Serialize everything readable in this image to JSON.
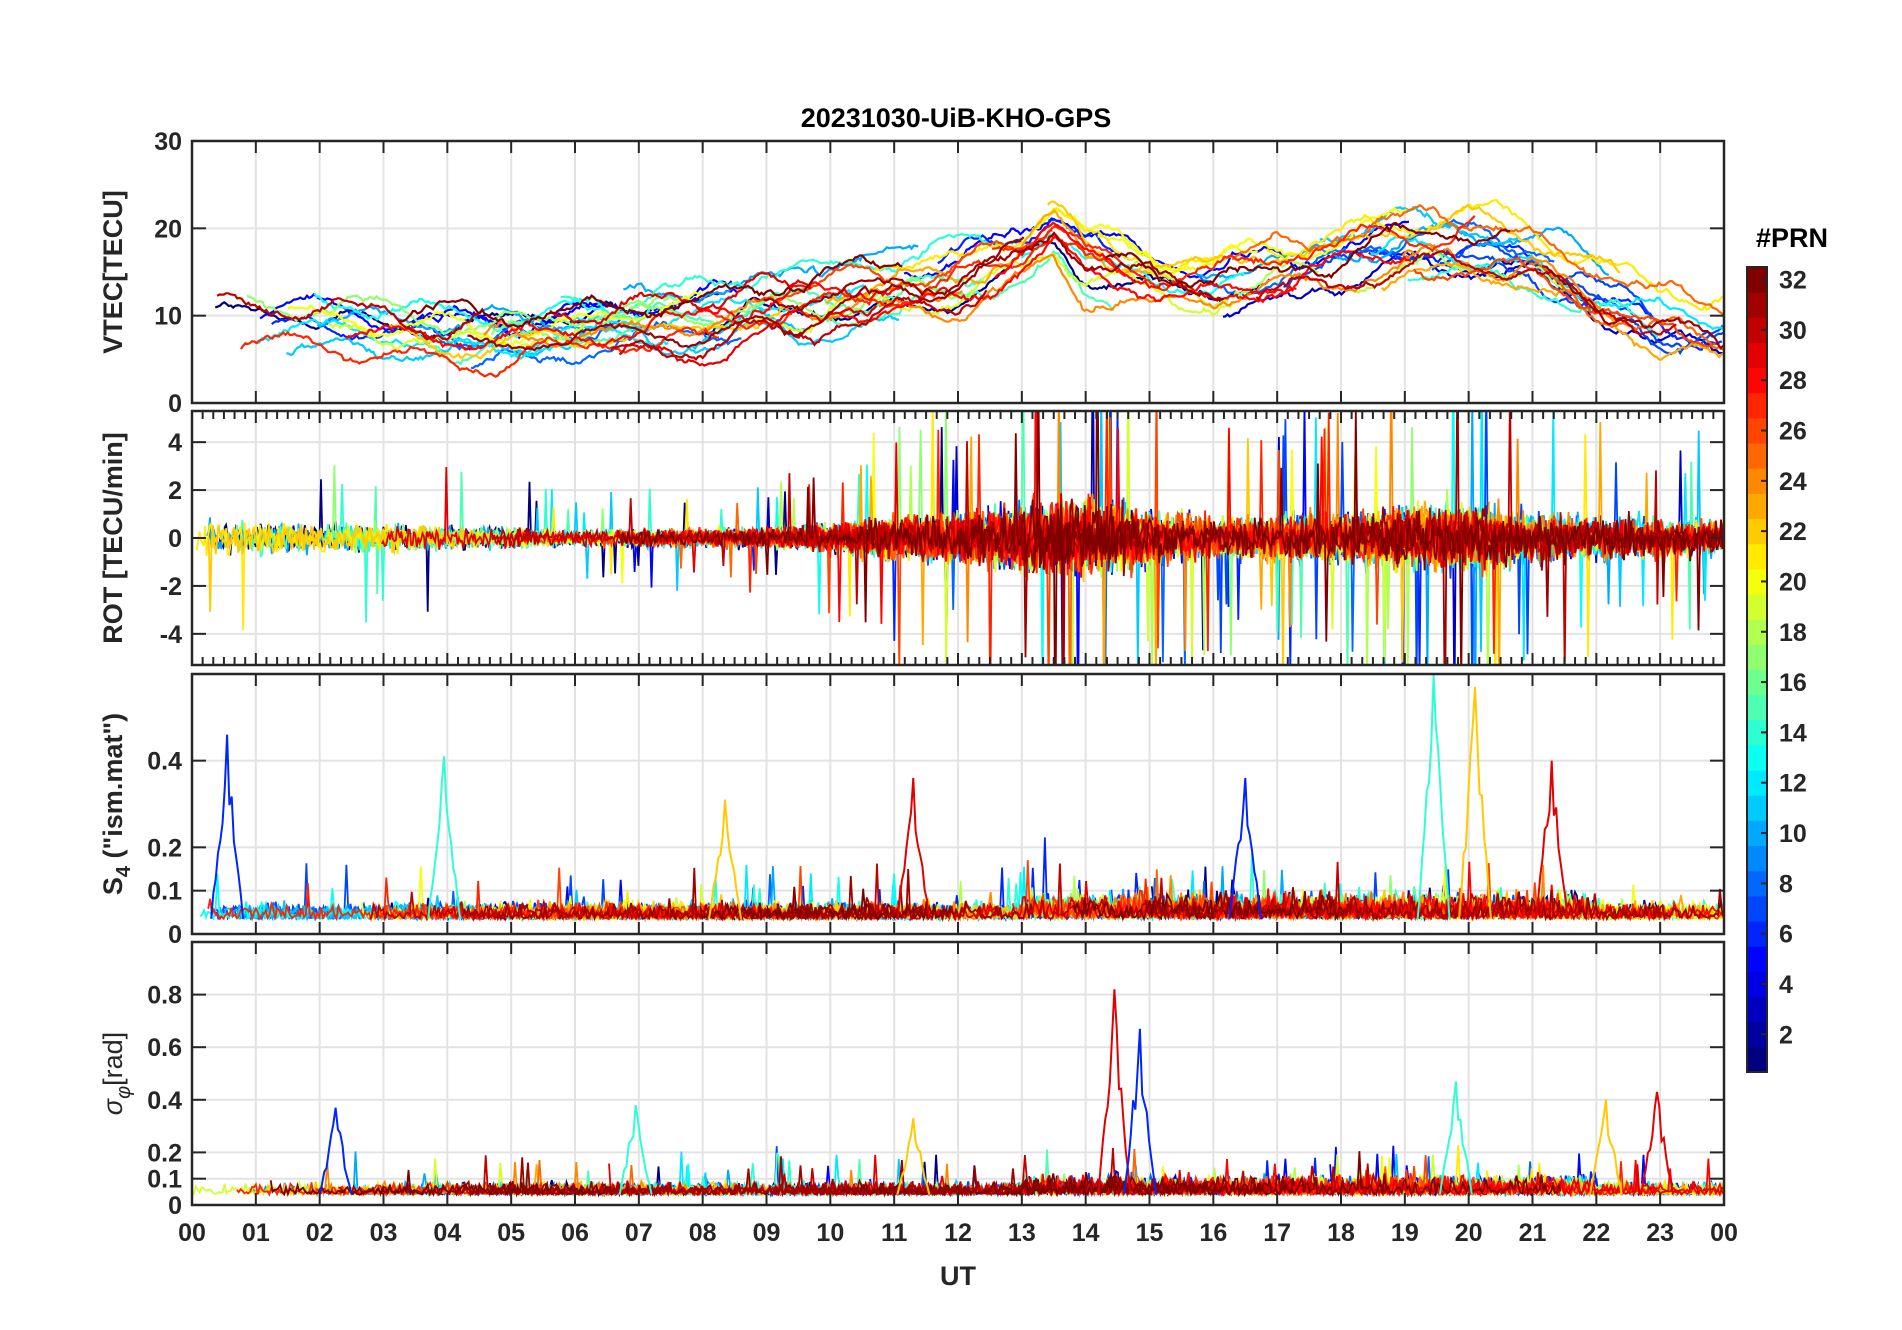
{
  "title": "20231030-UiB-KHO-GPS",
  "chart_data": {
    "type": "line",
    "title": "20231030-UiB-KHO-GPS",
    "xlabel": "UT",
    "x_ticks": [
      "00",
      "01",
      "02",
      "03",
      "04",
      "05",
      "06",
      "07",
      "08",
      "09",
      "10",
      "11",
      "12",
      "13",
      "14",
      "15",
      "16",
      "17",
      "18",
      "19",
      "20",
      "21",
      "22",
      "23",
      "00"
    ],
    "xlim": [
      0,
      24
    ],
    "panels": [
      {
        "id": "vtec",
        "ylabel": "VTEC[TECU]",
        "ylim": [
          0,
          30
        ],
        "y_ticks": [
          "0",
          "10",
          "20",
          "30"
        ],
        "y_tick_values": [
          0,
          10,
          20,
          30
        ],
        "grid": true,
        "envelope_hour": [
          0,
          2,
          4,
          6,
          8,
          10,
          11,
          12,
          13,
          13.5,
          14,
          15,
          16,
          17,
          18,
          19,
          20,
          21,
          22,
          23,
          24
        ],
        "envelope_mean": [
          9,
          8.5,
          7.5,
          8,
          10,
          12,
          13,
          14,
          17,
          20,
          16,
          14,
          13,
          15,
          16,
          18,
          18,
          17,
          13,
          10,
          9
        ]
      },
      {
        "id": "rot",
        "ylabel": "ROT [TECU/min]",
        "ylim": [
          -5.3,
          5.3
        ],
        "y_ticks": [
          "-4",
          "-2",
          "0",
          "2",
          "4"
        ],
        "y_tick_values": [
          -4,
          -2,
          0,
          2,
          4
        ],
        "grid": true,
        "envelope_hour": [
          0,
          3,
          6,
          9,
          10,
          11,
          12,
          13,
          14,
          15,
          16,
          17,
          18,
          19,
          20,
          21,
          22,
          23,
          24
        ],
        "envelope_amplitude": [
          1.2,
          0.9,
          0.5,
          0.6,
          0.9,
          1.4,
          1.5,
          2.2,
          2.4,
          1.8,
          1.2,
          1.4,
          1.5,
          2.0,
          2.2,
          1.6,
          1.4,
          1.2,
          1.1
        ]
      },
      {
        "id": "s4",
        "ylabel": "S4 (\"ism.mat\")",
        "ylabel_main": "S",
        "ylabel_sub": "4",
        "ylabel_rest": " (\"ism.mat\")",
        "ylim": [
          0,
          0.6
        ],
        "y_ticks": [
          "0",
          "0.1",
          "0.2",
          "0.4"
        ],
        "y_tick_values": [
          0,
          0.1,
          0.2,
          0.4
        ],
        "grid": true,
        "peaks": [
          {
            "hour": 0.55,
            "value": 0.46
          },
          {
            "hour": 3.95,
            "value": 0.41
          },
          {
            "hour": 8.35,
            "value": 0.31
          },
          {
            "hour": 11.3,
            "value": 0.36
          },
          {
            "hour": 16.5,
            "value": 0.36
          },
          {
            "hour": 19.45,
            "value": 0.6
          },
          {
            "hour": 20.1,
            "value": 0.57
          },
          {
            "hour": 21.3,
            "value": 0.4
          }
        ]
      },
      {
        "id": "sigma",
        "ylabel": "σφ[rad]",
        "ylabel_main": "σ",
        "ylabel_sub": "φ",
        "ylabel_rest": "[rad]",
        "ylim": [
          0,
          1
        ],
        "y_ticks": [
          "0",
          "0.1",
          "0.2",
          "0.4",
          "0.6",
          "0.8"
        ],
        "y_tick_values": [
          0,
          0.1,
          0.2,
          0.4,
          0.6,
          0.8
        ],
        "grid": true,
        "peaks": [
          {
            "hour": 2.25,
            "value": 0.37
          },
          {
            "hour": 6.95,
            "value": 0.38
          },
          {
            "hour": 11.3,
            "value": 0.33
          },
          {
            "hour": 14.45,
            "value": 0.82
          },
          {
            "hour": 14.85,
            "value": 0.67
          },
          {
            "hour": 19.8,
            "value": 0.47
          },
          {
            "hour": 22.15,
            "value": 0.4
          },
          {
            "hour": 22.95,
            "value": 0.43
          }
        ]
      }
    ],
    "colorbar": {
      "label": "#PRN",
      "range": [
        1,
        32
      ],
      "ticks": [
        "2",
        "4",
        "6",
        "8",
        "10",
        "12",
        "14",
        "16",
        "18",
        "20",
        "22",
        "24",
        "26",
        "28",
        "30",
        "32"
      ],
      "tick_values": [
        2,
        4,
        6,
        8,
        10,
        12,
        14,
        16,
        18,
        20,
        22,
        24,
        26,
        28,
        30,
        32
      ],
      "colormap": "jet"
    },
    "series_prn": [
      1,
      3,
      5,
      6,
      7,
      8,
      10,
      11,
      12,
      13,
      14,
      15,
      17,
      18,
      19,
      20,
      21,
      22,
      23,
      24,
      25,
      26,
      27,
      28,
      29,
      30,
      31,
      32
    ]
  }
}
